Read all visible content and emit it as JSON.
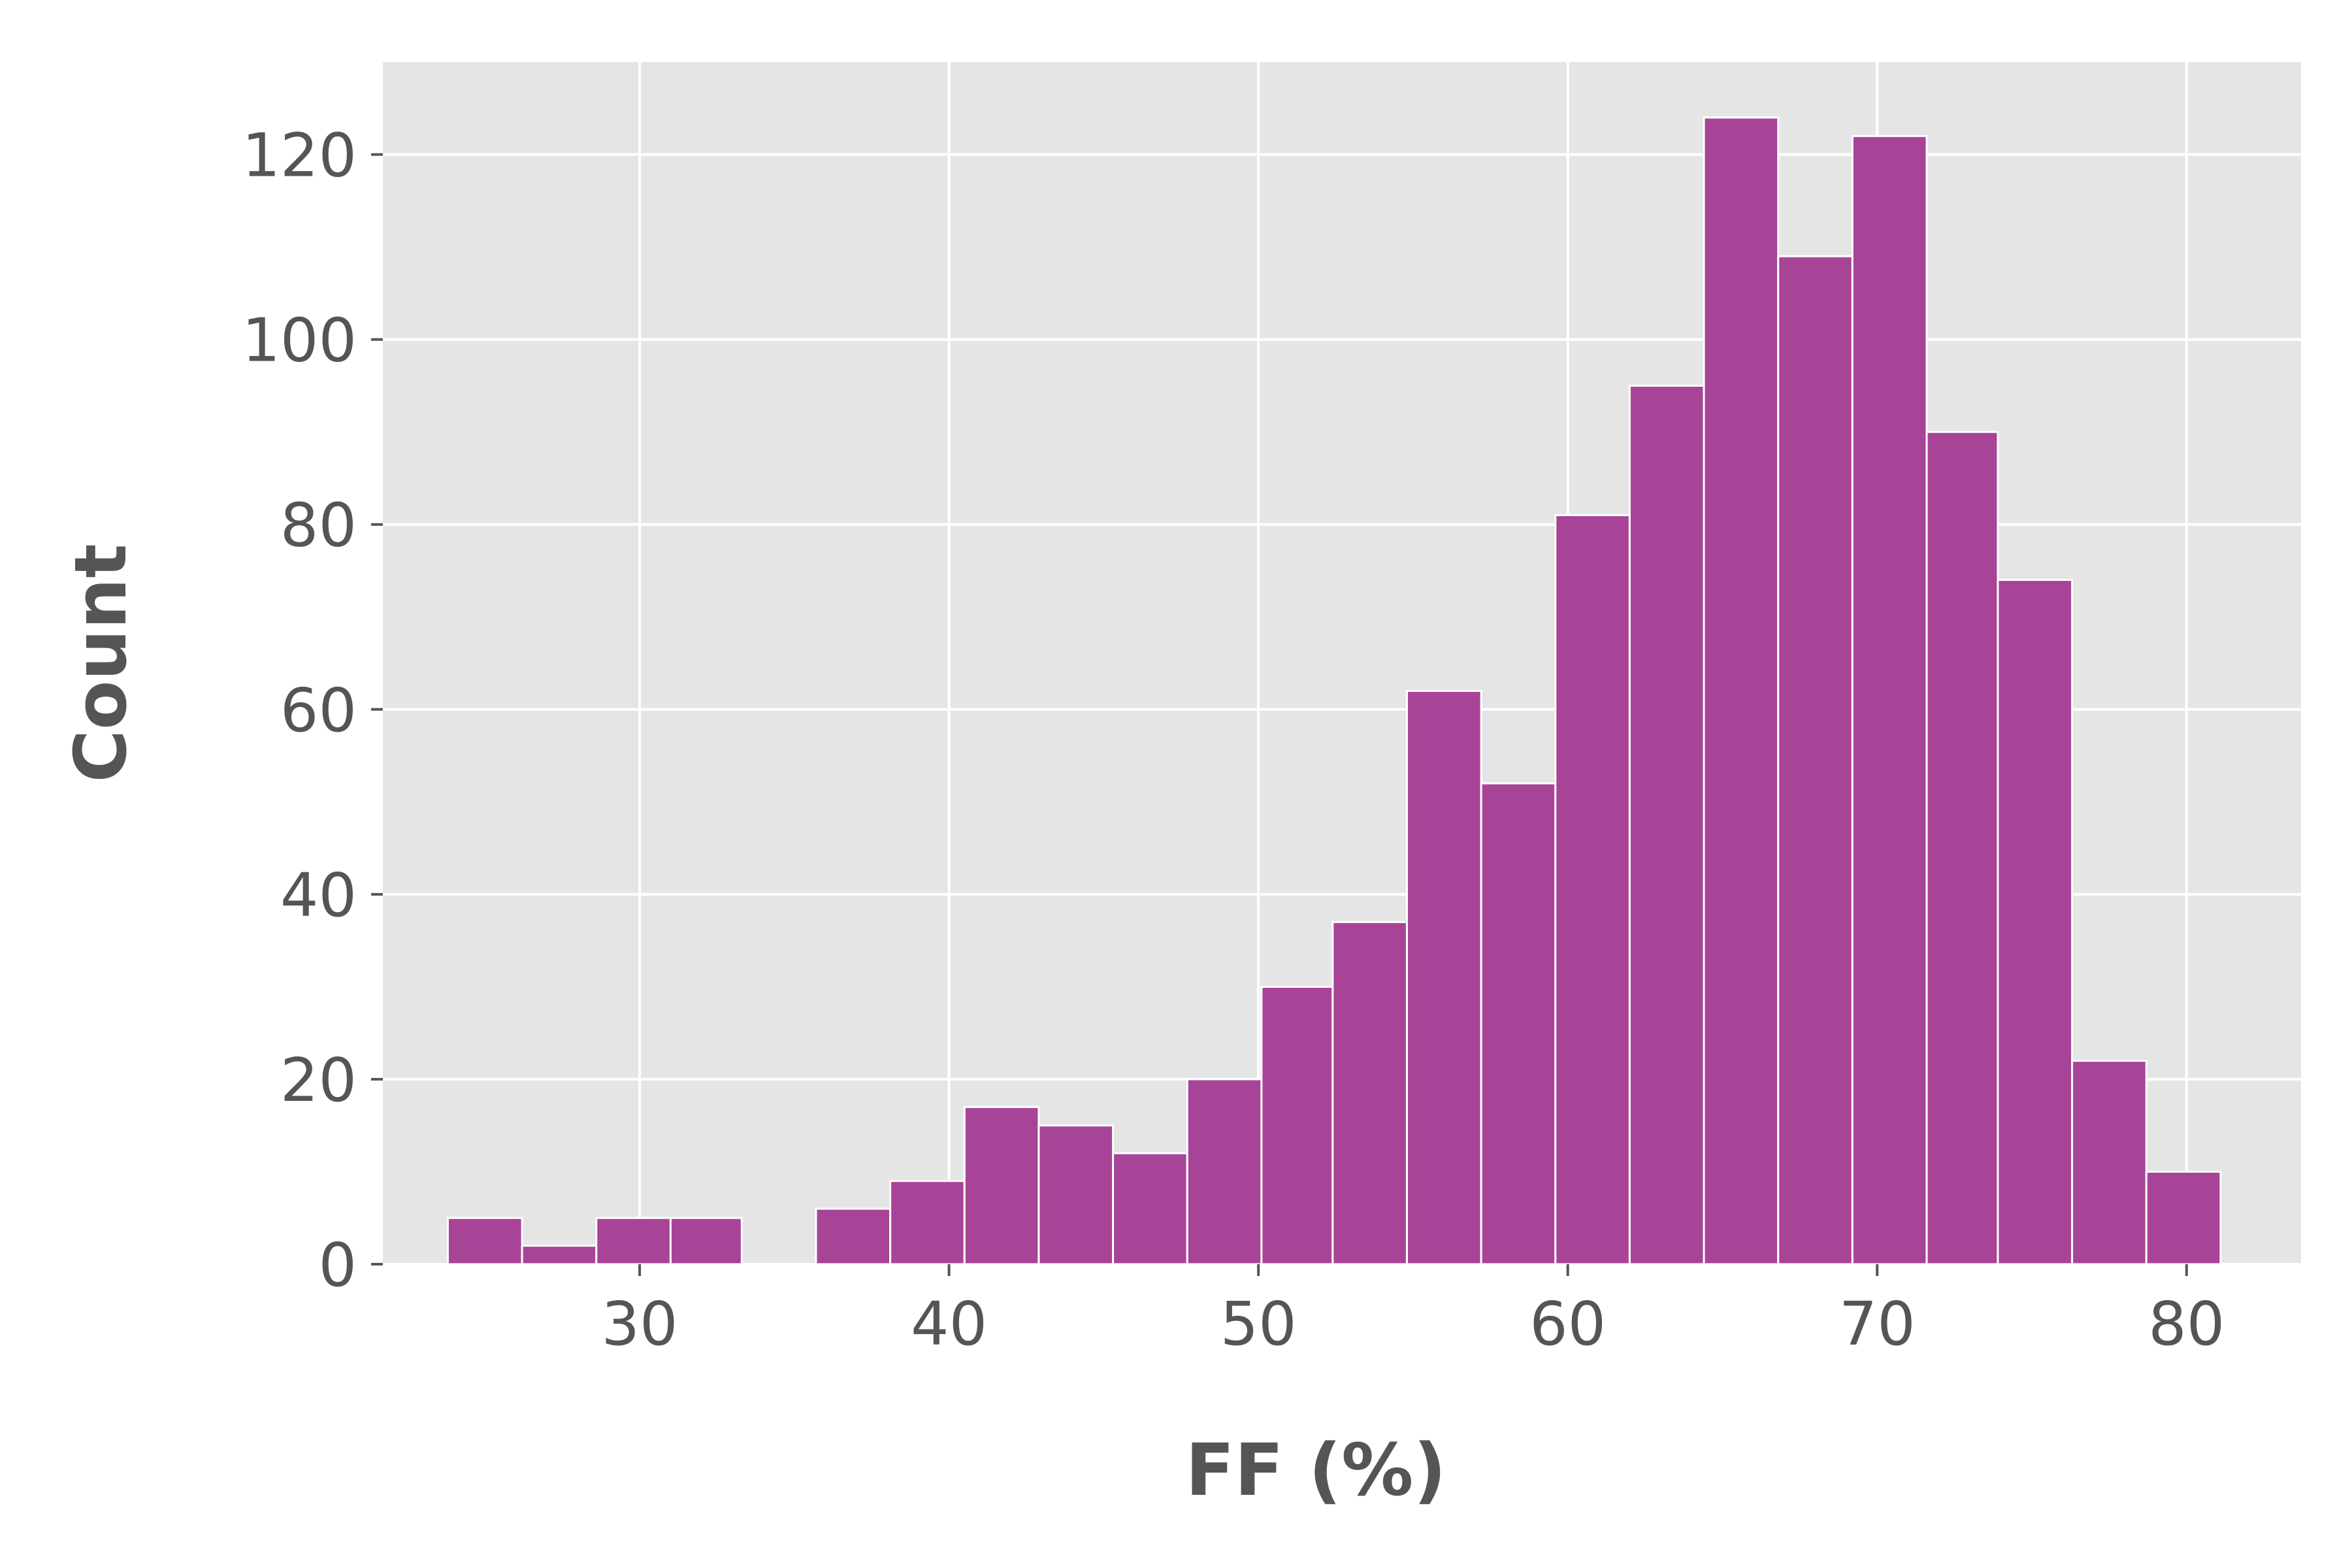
{
  "chart_data": {
    "type": "bar",
    "title": "",
    "xlabel": "FF (%)",
    "ylabel": "Count",
    "xlim": [
      21.7,
      83.7
    ],
    "ylim": [
      0,
      130
    ],
    "xticks": [
      30,
      40,
      50,
      60,
      70,
      80
    ],
    "yticks": [
      0,
      20,
      40,
      60,
      80,
      100,
      120
    ],
    "grid": true,
    "background_color": "#e5e5e5",
    "bar_color": "#a84497",
    "bins": [
      {
        "x0": 23.8,
        "x1": 26.2,
        "count": 5
      },
      {
        "x0": 26.2,
        "x1": 28.6,
        "count": 2
      },
      {
        "x0": 28.6,
        "x1": 31.0,
        "count": 5
      },
      {
        "x0": 31.0,
        "x1": 33.3,
        "count": 5
      },
      {
        "x0": 33.3,
        "x1": 35.7,
        "count": 0
      },
      {
        "x0": 35.7,
        "x1": 38.1,
        "count": 6
      },
      {
        "x0": 38.1,
        "x1": 40.5,
        "count": 9
      },
      {
        "x0": 40.5,
        "x1": 42.9,
        "count": 17
      },
      {
        "x0": 42.9,
        "x1": 45.3,
        "count": 15
      },
      {
        "x0": 45.3,
        "x1": 47.7,
        "count": 12
      },
      {
        "x0": 47.7,
        "x1": 50.1,
        "count": 20
      },
      {
        "x0": 50.1,
        "x1": 52.4,
        "count": 30
      },
      {
        "x0": 52.4,
        "x1": 54.8,
        "count": 37
      },
      {
        "x0": 54.8,
        "x1": 57.2,
        "count": 62
      },
      {
        "x0": 57.2,
        "x1": 59.6,
        "count": 52
      },
      {
        "x0": 59.6,
        "x1": 62.0,
        "count": 81
      },
      {
        "x0": 62.0,
        "x1": 64.4,
        "count": 95
      },
      {
        "x0": 64.4,
        "x1": 66.8,
        "count": 124
      },
      {
        "x0": 66.8,
        "x1": 69.2,
        "count": 109
      },
      {
        "x0": 69.2,
        "x1": 71.6,
        "count": 122
      },
      {
        "x0": 71.6,
        "x1": 73.9,
        "count": 90
      },
      {
        "x0": 73.9,
        "x1": 76.3,
        "count": 74
      },
      {
        "x0": 76.3,
        "x1": 78.7,
        "count": 22
      },
      {
        "x0": 78.7,
        "x1": 81.1,
        "count": 10
      }
    ]
  }
}
